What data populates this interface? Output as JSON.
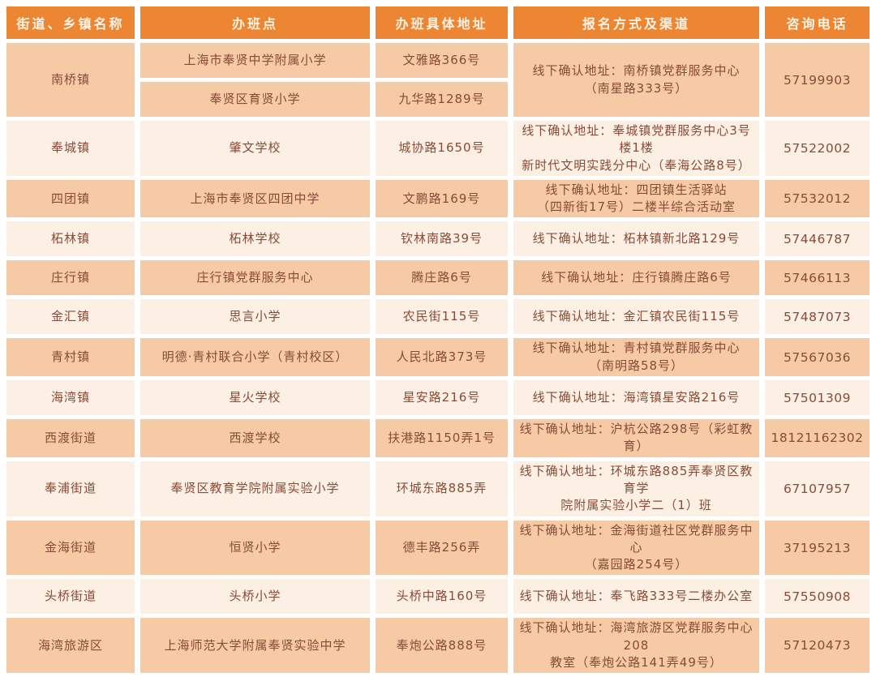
{
  "colors": {
    "header_bg": "#ed8633",
    "header_fg": "#fdf4e8",
    "row_dark": "#f5caa4",
    "row_light": "#fbf0e3",
    "cell_fg": "#8a4a38",
    "page_bg": "#ffffff"
  },
  "table": {
    "headers": [
      "街道、乡镇名称",
      "办班点",
      "办班具体地址",
      "报名方式及渠道",
      "咨询电话"
    ],
    "groups": [
      {
        "name": "南桥镇",
        "shade": "dark",
        "entries": [
          {
            "site": "上海市奉贤中学附属小学",
            "address": "文雅路366号"
          },
          {
            "site": "奉贤区育贤小学",
            "address": "九华路1289号"
          }
        ],
        "registration": "线下确认地址：南桥镇党群服务中心\n（南星路333号）",
        "phone": "57199903"
      },
      {
        "name": "奉城镇",
        "shade": "light",
        "entries": [
          {
            "site": "肇文学校",
            "address": "城协路1650号"
          }
        ],
        "registration": "线下确认地址：奉城镇党群服务中心3号楼1楼\n新时代文明实践分中心（奉海公路8号）",
        "phone": "57522002"
      },
      {
        "name": "四团镇",
        "shade": "dark",
        "entries": [
          {
            "site": "上海市奉贤区四团中学",
            "address": "文鹏路169号"
          }
        ],
        "registration": "线下确认地址：四团镇生活驿站\n（四新街17号）二楼半综合活动室",
        "phone": "57532012"
      },
      {
        "name": "柘林镇",
        "shade": "light",
        "entries": [
          {
            "site": "柘林学校",
            "address": "钦林南路39号"
          }
        ],
        "registration": "线下确认地址：柘林镇新北路129号",
        "phone": "57446787"
      },
      {
        "name": "庄行镇",
        "shade": "dark",
        "entries": [
          {
            "site": "庄行镇党群服务中心",
            "address": "腾庄路6号"
          }
        ],
        "registration": "线下确认地址：庄行镇腾庄路6号",
        "phone": "57466113"
      },
      {
        "name": "金汇镇",
        "shade": "light",
        "entries": [
          {
            "site": "思言小学",
            "address": "农民街115号"
          }
        ],
        "registration": "线下确认地址：金汇镇农民街115号",
        "phone": "57487073"
      },
      {
        "name": "青村镇",
        "shade": "dark",
        "entries": [
          {
            "site": "明德·青村联合小学（青村校区）",
            "address": "人民北路373号"
          }
        ],
        "registration": "线下确认地址：青村镇党群服务中心\n（南明路58号）",
        "phone": "57567036"
      },
      {
        "name": "海湾镇",
        "shade": "light",
        "entries": [
          {
            "site": "星火学校",
            "address": "星安路216号"
          }
        ],
        "registration": "线下确认地址：海湾镇星安路216号",
        "phone": "57501309"
      },
      {
        "name": "西渡街道",
        "shade": "dark",
        "entries": [
          {
            "site": "西渡学校",
            "address": "扶港路1150弄1号"
          }
        ],
        "registration": "线下确认地址：沪杭公路298号（彩虹教育）",
        "phone": "18121162302"
      },
      {
        "name": "奉浦街道",
        "shade": "light",
        "entries": [
          {
            "site": "奉贤区教育学院附属实验小学",
            "address": "环城东路885弄"
          }
        ],
        "registration": "线下确认地址：环城东路885弄奉贤区教育学\n院附属实验小学二（1）班",
        "phone": "67107957"
      },
      {
        "name": "金海街道",
        "shade": "dark",
        "entries": [
          {
            "site": "恒贤小学",
            "address": "德丰路256弄"
          }
        ],
        "registration": "线下确认地址：金海街道社区党群服务中心\n（嘉园路254号）",
        "phone": "37195213"
      },
      {
        "name": "头桥街道",
        "shade": "light",
        "entries": [
          {
            "site": "头桥小学",
            "address": "头桥中路160号"
          }
        ],
        "registration": "线下确认地址：奉飞路333号二楼办公室",
        "phone": "57550908"
      },
      {
        "name": "海湾旅游区",
        "shade": "dark",
        "entries": [
          {
            "site": "上海师范大学附属奉贤实验中学",
            "address": "奉炮公路888号"
          }
        ],
        "registration": "线下确认地址：海湾旅游区党群服务中心208\n教室（奉炮公路141弄49号）",
        "phone": "57120473"
      }
    ]
  }
}
